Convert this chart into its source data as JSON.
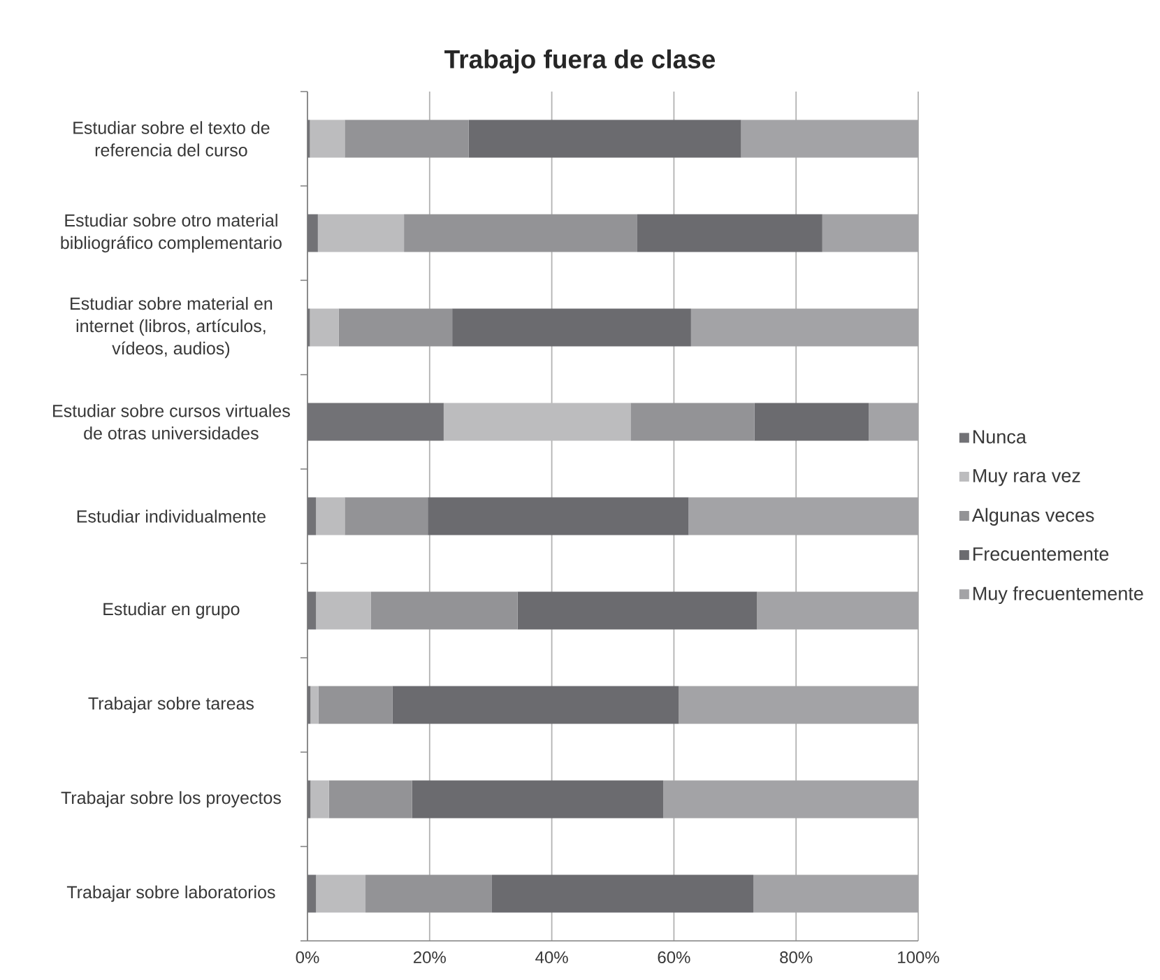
{
  "chart_data": {
    "type": "bar",
    "orientation": "horizontal",
    "stacked": true,
    "title": "Trabajo fuera de clase",
    "categories": [
      "Estudiar sobre el texto de referencia del curso",
      "Estudiar sobre otro material bibliográfico complementario",
      "Estudiar sobre material en internet (libros, artículos, vídeos, audios)",
      "Estudiar sobre cursos virtuales de otras universidades",
      "Estudiar individualmente",
      "Estudiar en grupo",
      "Trabajar sobre tareas",
      "Trabajar sobre los proyectos",
      "Trabajar sobre laboratorios"
    ],
    "series": [
      {
        "name": "Nunca",
        "color": "#727276",
        "values": [
          0.4,
          1.7,
          0.4,
          22.3,
          1.4,
          1.4,
          0.5,
          0.5,
          1.4
        ]
      },
      {
        "name": "Muy rara vez",
        "color": "#bcbcbe",
        "values": [
          5.7,
          14.1,
          4.7,
          30.6,
          4.7,
          9.0,
          1.3,
          3.0,
          8.1
        ]
      },
      {
        "name": "Algunas veces",
        "color": "#939396",
        "values": [
          20.3,
          38.2,
          18.6,
          20.3,
          13.6,
          24.0,
          12.1,
          13.6,
          20.7
        ]
      },
      {
        "name": "Frecuentemente",
        "color": "#6b6b6f",
        "values": [
          44.6,
          30.3,
          39.1,
          18.7,
          42.7,
          39.2,
          46.9,
          41.2,
          42.8
        ]
      },
      {
        "name": "Muy frecuentemente",
        "color": "#a3a3a6",
        "values": [
          29.0,
          15.7,
          37.2,
          8.1,
          37.6,
          26.4,
          39.2,
          41.7,
          27.0
        ]
      }
    ],
    "xlim": [
      0,
      100
    ],
    "xticks": [
      {
        "value": 0,
        "label": "0%"
      },
      {
        "value": 20,
        "label": "20%"
      },
      {
        "value": 40,
        "label": "40%"
      },
      {
        "value": 60,
        "label": "60%"
      },
      {
        "value": 80,
        "label": "80%"
      },
      {
        "value": 100,
        "label": "100%"
      }
    ],
    "grid": "x",
    "legend": "right"
  }
}
